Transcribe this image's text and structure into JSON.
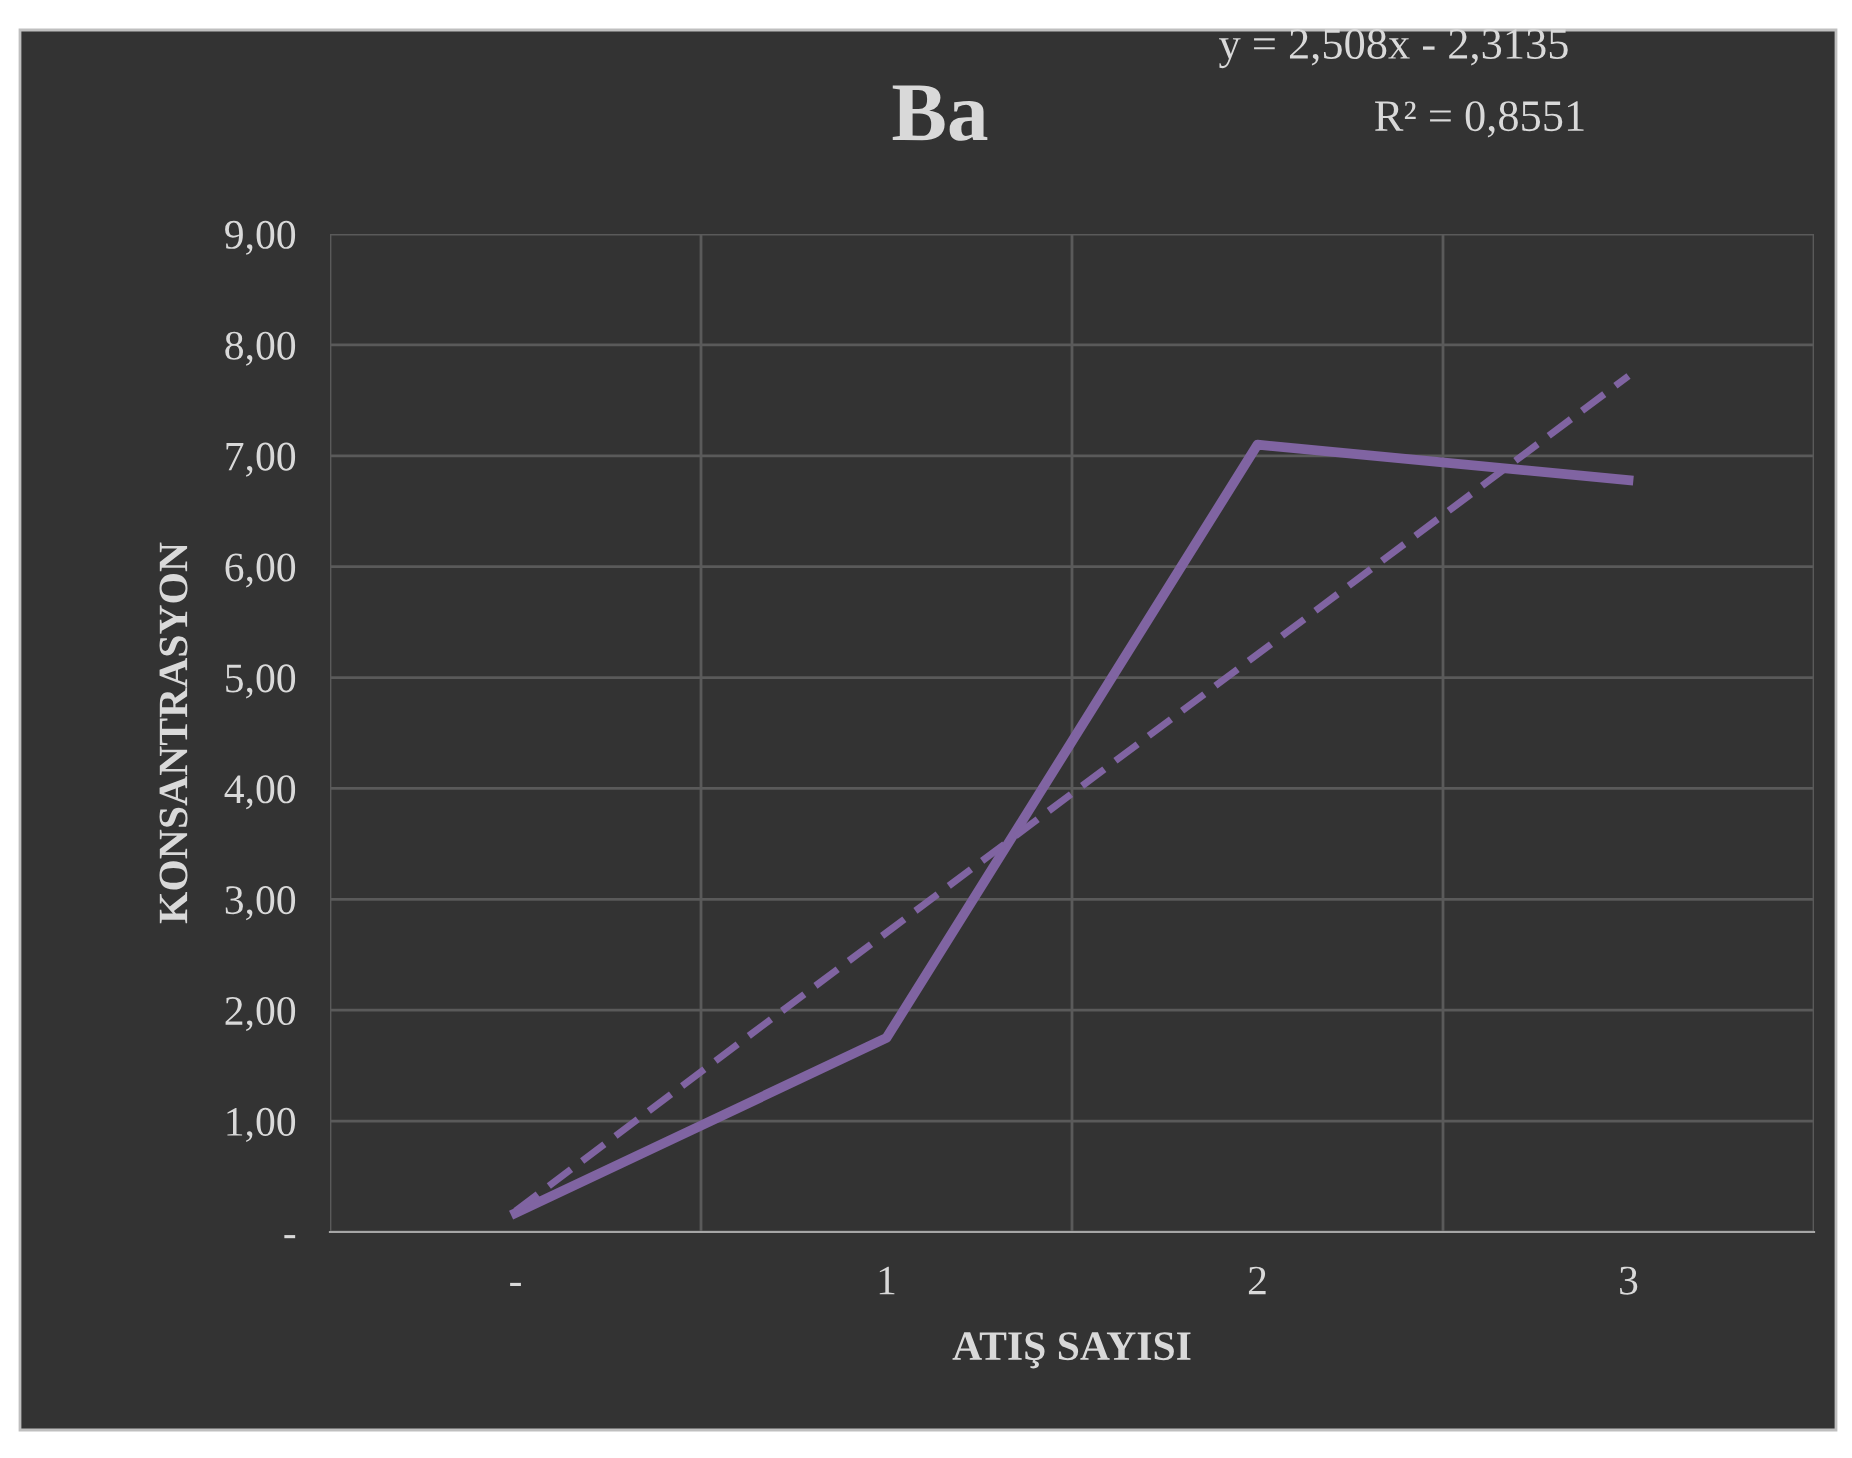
{
  "chart_data": {
    "type": "line",
    "title": "Ba",
    "xlabel": "ATIŞ SAYISI",
    "ylabel": "KONSANTRASYON",
    "categories": [
      "-",
      "1",
      "2",
      "3"
    ],
    "series": [
      {
        "color": "#8064a2",
        "values": [
          0.17,
          1.75,
          7.1,
          6.78
        ],
        "line_style": "solid"
      },
      {
        "color": "#8064a2",
        "values": [
          0.19,
          2.7,
          5.21,
          7.72
        ],
        "line_style": "dashed"
      }
    ],
    "ylim": [
      0,
      9
    ],
    "yticks": [
      {
        "value": 0,
        "label": "-"
      },
      {
        "value": 1,
        "label": "1,00"
      },
      {
        "value": 2,
        "label": "2,00"
      },
      {
        "value": 3,
        "label": "3,00"
      },
      {
        "value": 4,
        "label": "4,00"
      },
      {
        "value": 5,
        "label": "5,00"
      },
      {
        "value": 6,
        "label": "6,00"
      },
      {
        "value": 7,
        "label": "7,00"
      },
      {
        "value": 8,
        "label": "8,00"
      },
      {
        "value": 9,
        "label": "9,00"
      }
    ],
    "grid": true,
    "legend": false,
    "marker": "none",
    "annotations": [
      "y = 2,508x - 2,3135",
      "R² = 0,8551"
    ]
  }
}
